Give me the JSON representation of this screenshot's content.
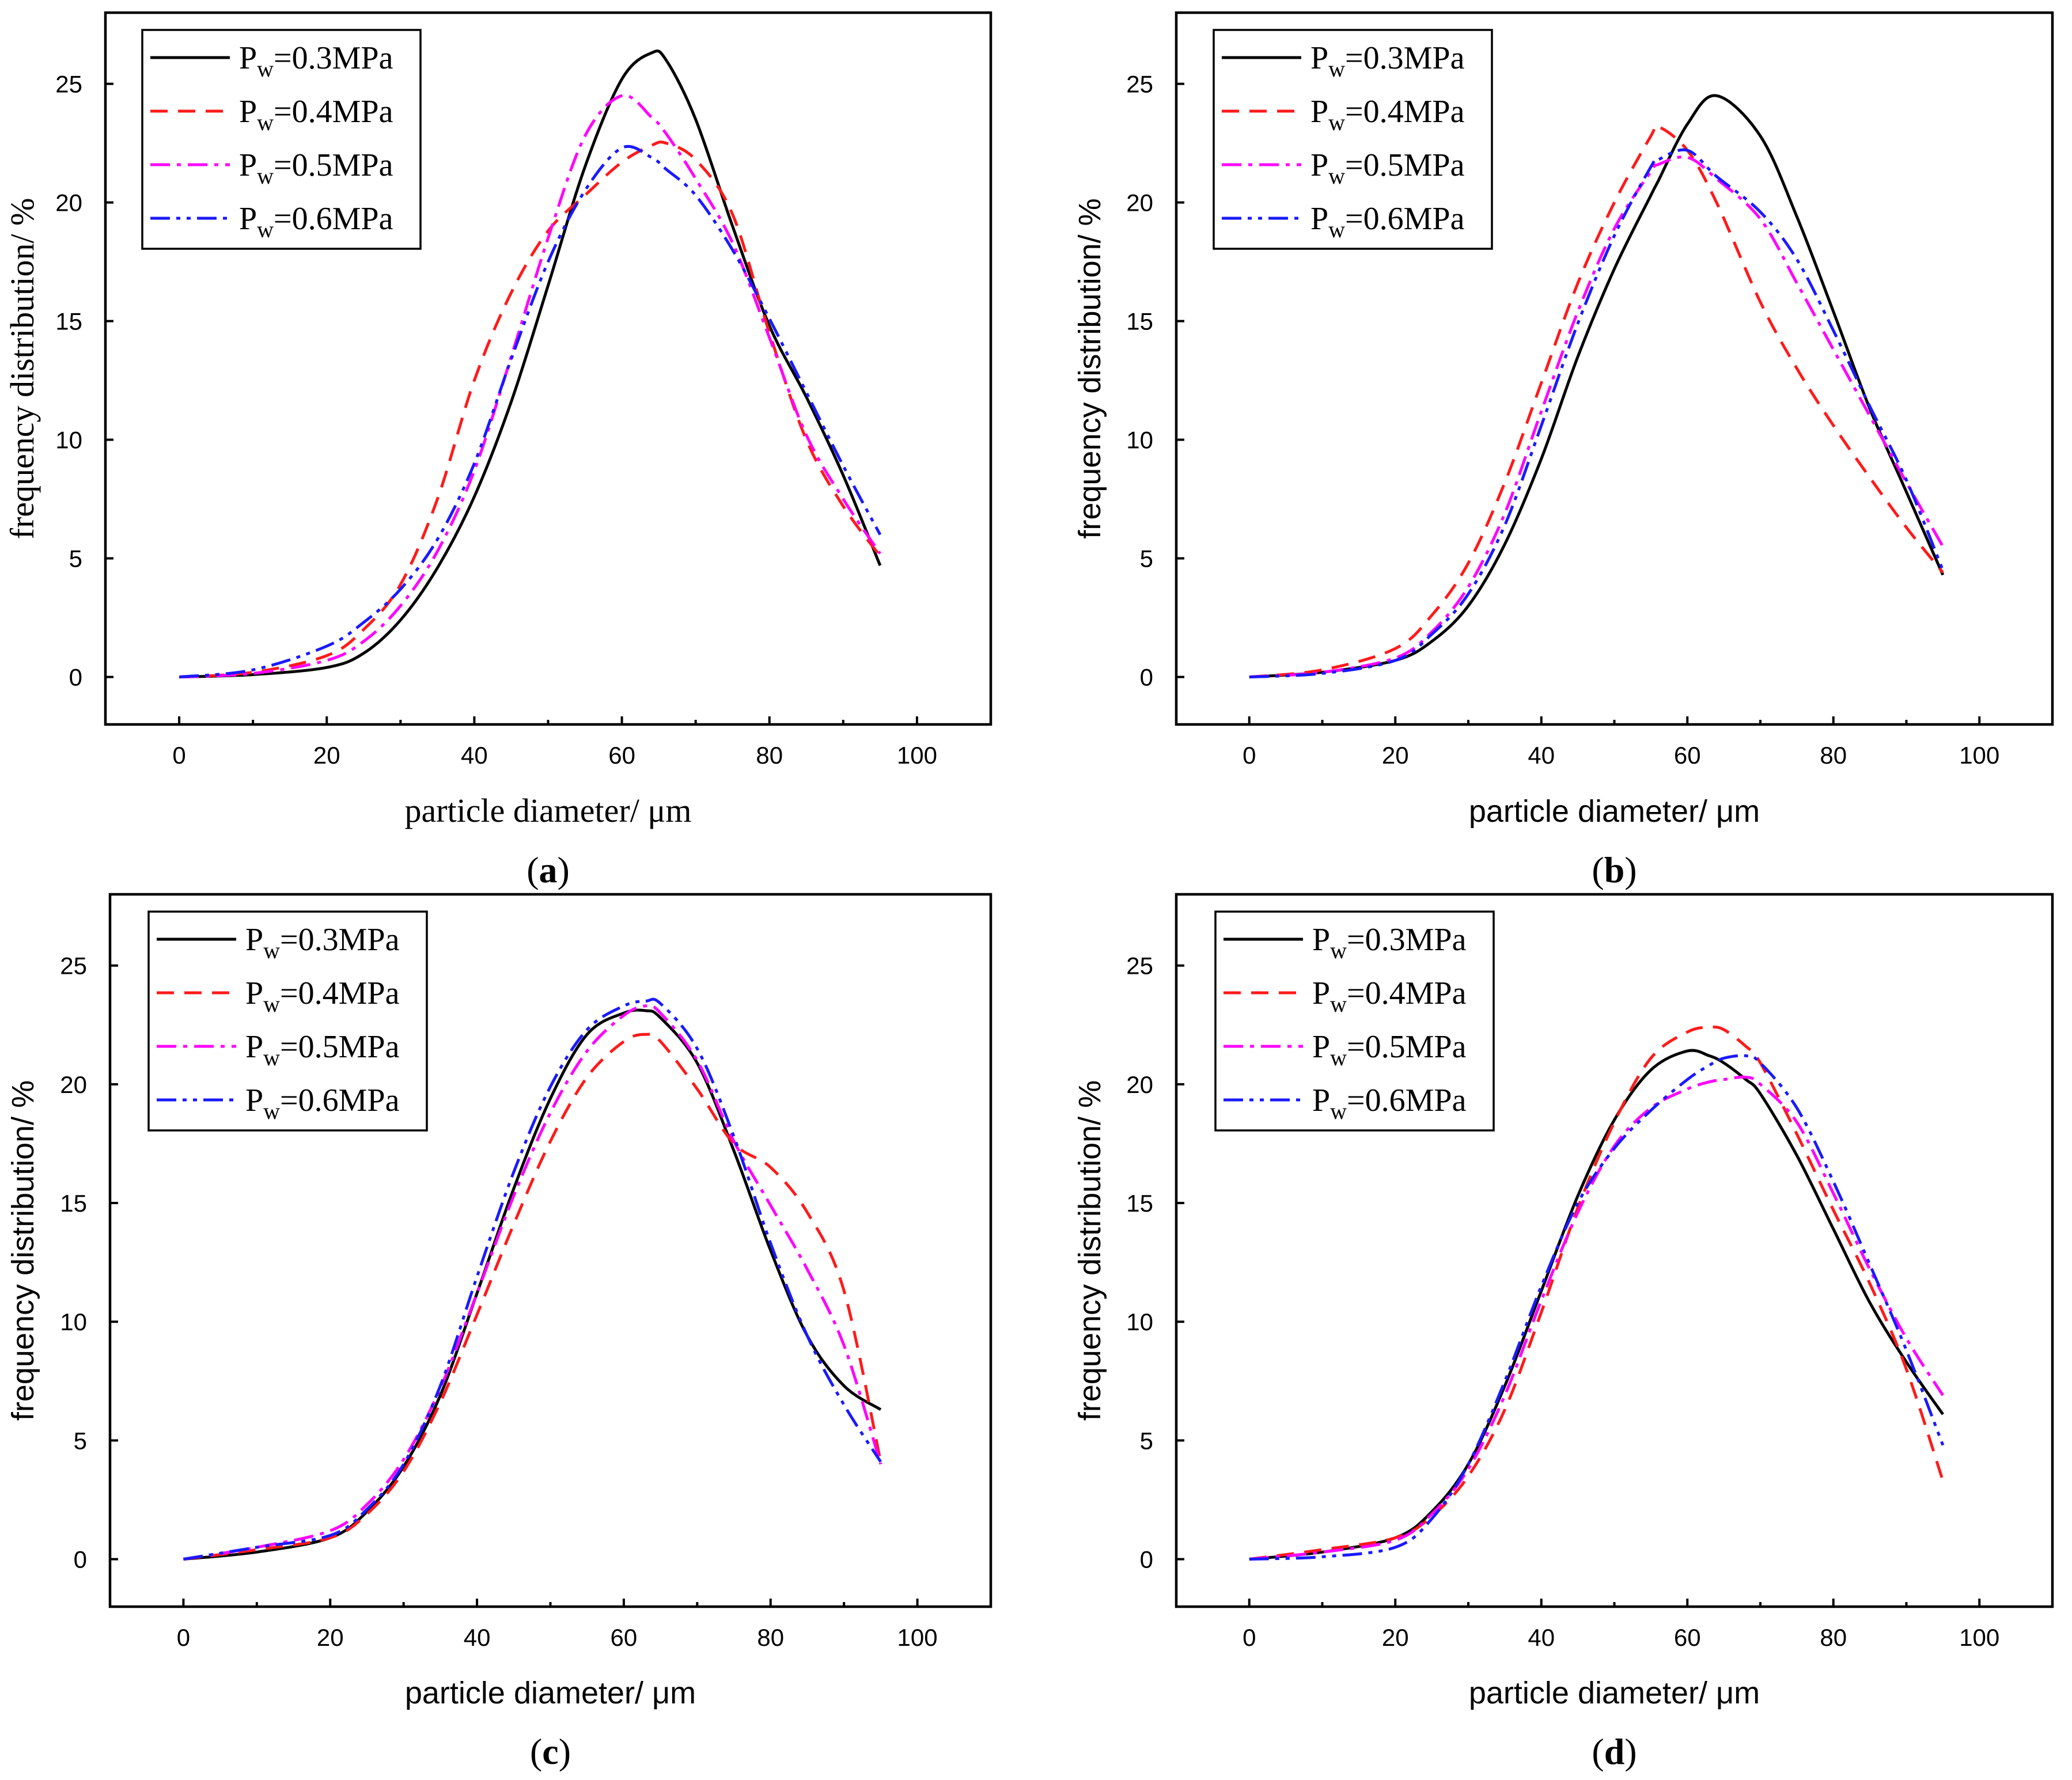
{
  "figure": {
    "panels": [
      "a",
      "b",
      "c",
      "d"
    ]
  },
  "legend_entries": [
    {
      "prefix": "P",
      "subscript": "w",
      "suffix": "=0.3MPa",
      "color": "#000000",
      "dash": "solid"
    },
    {
      "prefix": "P",
      "subscript": "w",
      "suffix": "=0.4MPa",
      "color": "#ff1a1a",
      "dash": "dash"
    },
    {
      "prefix": "P",
      "subscript": "w",
      "suffix": "=0.5MPa",
      "color": "#ff00ff",
      "dash": "dashdot"
    },
    {
      "prefix": "P",
      "subscript": "w",
      "suffix": "=0.6MPa",
      "color": "#1a1aff",
      "dash": "dashdotdot"
    }
  ],
  "chart_data": [
    {
      "type": "line",
      "panel_label": "a",
      "xlabel": "particle diameter/ μm",
      "ylabel": "frequency distribution/ %",
      "xlim": [
        -10,
        110
      ],
      "ylim": [
        -2,
        28
      ],
      "xticks": [
        0,
        20,
        40,
        60,
        80,
        100
      ],
      "yticks": [
        0,
        5,
        10,
        15,
        20,
        25
      ],
      "legend_position": "top-left",
      "x": [
        0,
        10,
        20,
        25,
        30,
        35,
        40,
        45,
        50,
        55,
        60,
        64,
        66,
        70,
        75,
        80,
        85,
        90,
        95
      ],
      "series": [
        {
          "name": "Pw=0.3MPa",
          "values": [
            0,
            0.1,
            0.4,
            1.0,
            2.4,
            4.6,
            7.6,
            11.6,
            16.5,
            21.5,
            25.2,
            26.3,
            26.0,
            23.5,
            19.0,
            14.8,
            11.8,
            8.5,
            4.7
          ]
        },
        {
          "name": "Pw=0.4MPa",
          "values": [
            0,
            0.2,
            0.9,
            2.0,
            3.9,
            7.5,
            12.5,
            16.2,
            18.8,
            20.3,
            21.7,
            22.4,
            22.5,
            21.8,
            19.5,
            14.5,
            10.0,
            7.2,
            5.1
          ]
        },
        {
          "name": "Pw=0.5MPa",
          "values": [
            0,
            0.15,
            0.7,
            1.5,
            3.0,
            5.3,
            8.7,
            13.5,
            18.5,
            22.8,
            24.5,
            23.6,
            22.9,
            21.0,
            18.3,
            14.3,
            10.2,
            7.5,
            5.2
          ]
        },
        {
          "name": "Pw=0.6MPa",
          "values": [
            0,
            0.3,
            1.3,
            2.3,
            3.7,
            5.8,
            9.0,
            13.4,
            17.5,
            20.5,
            22.3,
            21.9,
            21.4,
            20.3,
            18.0,
            15.1,
            12.0,
            8.9,
            6.0
          ]
        }
      ]
    },
    {
      "type": "line",
      "panel_label": "b",
      "xlabel": "particle diameter/ μm",
      "ylabel": "frequency distribution/ %",
      "xlim": [
        -10,
        110
      ],
      "ylim": [
        -2,
        28
      ],
      "xticks": [
        0,
        20,
        40,
        60,
        80,
        100
      ],
      "yticks": [
        0,
        5,
        10,
        15,
        20,
        25
      ],
      "legend_position": "top-left",
      "x": [
        0,
        10,
        20,
        25,
        30,
        35,
        40,
        45,
        50,
        55,
        56,
        60,
        64,
        70,
        75,
        80,
        85,
        90,
        95
      ],
      "series": [
        {
          "name": "Pw=0.3MPa",
          "values": [
            0,
            0.2,
            0.7,
            1.5,
            3.0,
            5.6,
            9.2,
            13.5,
            17.2,
            20.3,
            20.9,
            23.3,
            24.5,
            22.8,
            19.4,
            15.4,
            11.3,
            7.8,
            4.3
          ]
        },
        {
          "name": "Pw=0.4MPa",
          "values": [
            0,
            0.3,
            1.2,
            2.6,
            4.8,
            8.2,
            12.4,
            16.6,
            20.0,
            22.8,
            23.2,
            22.2,
            20.0,
            15.8,
            13.0,
            10.6,
            8.4,
            6.3,
            4.4
          ]
        },
        {
          "name": "Pw=0.5MPa",
          "values": [
            0,
            0.2,
            0.8,
            1.9,
            3.8,
            6.9,
            11.2,
            15.4,
            18.9,
            21.3,
            21.6,
            21.9,
            21.0,
            19.3,
            16.6,
            13.8,
            11.0,
            8.2,
            5.5
          ]
        },
        {
          "name": "Pw=0.6MPa",
          "values": [
            0,
            0.15,
            0.7,
            1.8,
            3.5,
            6.4,
            10.6,
            14.9,
            18.6,
            21.5,
            21.8,
            22.2,
            21.1,
            19.6,
            17.6,
            14.6,
            11.4,
            8.3,
            4.5
          ]
        }
      ]
    },
    {
      "type": "line",
      "panel_label": "c",
      "xlabel": "particle diameter/ μm",
      "ylabel": "frequency distribution/ %",
      "xlim": [
        -10,
        110
      ],
      "ylim": [
        -2,
        28
      ],
      "xticks": [
        0,
        20,
        40,
        60,
        80,
        100
      ],
      "yticks": [
        0,
        5,
        10,
        15,
        20,
        25
      ],
      "legend_position": "top-left",
      "x": [
        0,
        10,
        20,
        25,
        30,
        35,
        40,
        45,
        50,
        55,
        60,
        63,
        65,
        70,
        75,
        80,
        85,
        90,
        95
      ],
      "series": [
        {
          "name": "Pw=0.3MPa",
          "values": [
            0,
            0.3,
            0.9,
            2.0,
            3.9,
            6.9,
            11.2,
            15.6,
            19.4,
            22.1,
            23.0,
            23.1,
            22.8,
            20.9,
            17.2,
            13.0,
            9.4,
            7.3,
            6.3
          ]
        },
        {
          "name": "Pw=0.4MPa",
          "values": [
            0,
            0.4,
            0.9,
            1.9,
            3.7,
            6.6,
            10.3,
            14.1,
            17.6,
            20.3,
            21.8,
            22.1,
            21.8,
            19.8,
            17.5,
            16.5,
            14.6,
            11.3,
            4.1
          ]
        },
        {
          "name": "Pw=0.5MPa",
          "values": [
            0,
            0.5,
            1.2,
            2.3,
            4.2,
            7.2,
            11.2,
            15.3,
            18.8,
            21.4,
            22.9,
            23.3,
            23.0,
            21.0,
            17.6,
            14.9,
            12.2,
            9.0,
            4.0
          ]
        },
        {
          "name": "Pw=0.6MPa",
          "values": [
            0,
            0.5,
            1.0,
            2.1,
            4.0,
            7.3,
            11.9,
            16.3,
            19.9,
            22.3,
            23.3,
            23.5,
            23.4,
            21.5,
            17.8,
            13.3,
            9.4,
            6.5,
            4.1
          ]
        }
      ]
    },
    {
      "type": "line",
      "panel_label": "d",
      "xlabel": "particle diameter/ μm",
      "ylabel": "frequency distribution/ %",
      "xlim": [
        -10,
        110
      ],
      "ylim": [
        -2,
        28
      ],
      "xticks": [
        0,
        20,
        40,
        60,
        80,
        100
      ],
      "yticks": [
        0,
        5,
        10,
        15,
        20,
        25
      ],
      "legend_position": "top-left",
      "x": [
        0,
        10,
        20,
        25,
        30,
        35,
        40,
        45,
        50,
        55,
        60,
        63,
        65,
        68,
        70,
        75,
        80,
        85,
        90,
        95
      ],
      "series": [
        {
          "name": "Pw=0.3MPa",
          "values": [
            0,
            0.3,
            0.9,
            2.0,
            4.0,
            7.3,
            11.3,
            15.3,
            18.5,
            20.6,
            21.4,
            21.2,
            20.9,
            20.2,
            19.6,
            17.0,
            13.9,
            10.8,
            8.3,
            6.1
          ]
        },
        {
          "name": "Pw=0.4MPa",
          "values": [
            0,
            0.4,
            0.9,
            1.8,
            3.5,
            6.3,
            10.4,
            14.8,
            18.4,
            21.1,
            22.2,
            22.4,
            22.3,
            21.6,
            20.9,
            17.9,
            14.7,
            11.6,
            8.0,
            3.3
          ]
        },
        {
          "name": "Pw=0.5MPa",
          "values": [
            0,
            0.3,
            0.8,
            1.9,
            3.8,
            6.9,
            10.9,
            14.6,
            17.4,
            19.0,
            19.8,
            20.1,
            20.2,
            20.3,
            20.0,
            18.4,
            15.4,
            12.2,
            9.3,
            6.9
          ]
        },
        {
          "name": "Pw=0.6MPa",
          "values": [
            0,
            0.1,
            0.5,
            1.7,
            4.0,
            7.5,
            11.5,
            15.0,
            17.3,
            18.9,
            20.2,
            20.8,
            21.1,
            21.2,
            20.9,
            19.0,
            15.9,
            12.4,
            8.8,
            4.8
          ]
        }
      ]
    }
  ]
}
